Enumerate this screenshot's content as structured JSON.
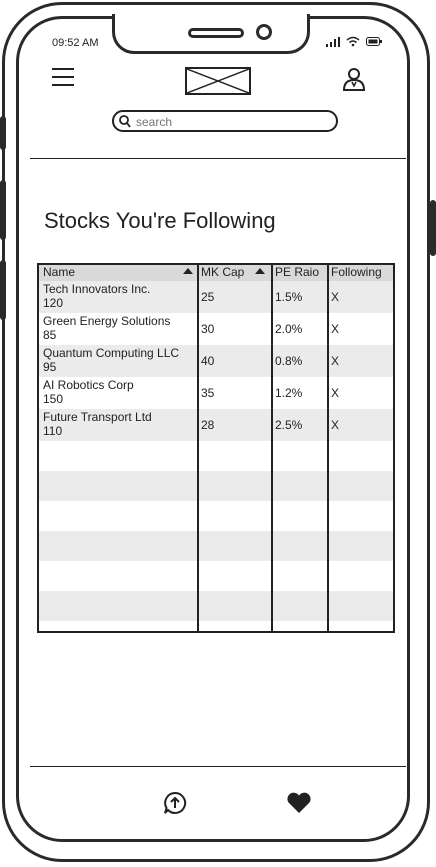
{
  "status_bar": {
    "time": "09:52 AM"
  },
  "header": {
    "logo": "logo-placeholder"
  },
  "search": {
    "placeholder": "search"
  },
  "page": {
    "title": "Stocks You're Following"
  },
  "table": {
    "columns": [
      {
        "label": "Name",
        "sortable": true
      },
      {
        "label": "MK Cap",
        "sortable": true
      },
      {
        "label": "PE Raio",
        "sortable": false
      },
      {
        "label": "Following",
        "sortable": false
      }
    ],
    "rows": [
      {
        "name": "Tech Innovators Inc.",
        "sub": "120",
        "mkcap": "25",
        "pe": "1.5%",
        "following": "X"
      },
      {
        "name": "Green Energy Solutions",
        "sub": "85",
        "mkcap": "30",
        "pe": "2.0%",
        "following": "X"
      },
      {
        "name": "Quantum Computing LLC",
        "sub": "95",
        "mkcap": "40",
        "pe": "0.8%",
        "following": "X"
      },
      {
        "name": "AI Robotics Corp",
        "sub": "150",
        "mkcap": "35",
        "pe": "1.2%",
        "following": "X"
      },
      {
        "name": "Future Transport Ltd",
        "sub": "110",
        "mkcap": "28",
        "pe": "2.5%",
        "following": "X"
      }
    ]
  },
  "bottom_nav": [
    {
      "icon": "upload-chat-icon"
    },
    {
      "icon": "heart-icon"
    }
  ]
}
